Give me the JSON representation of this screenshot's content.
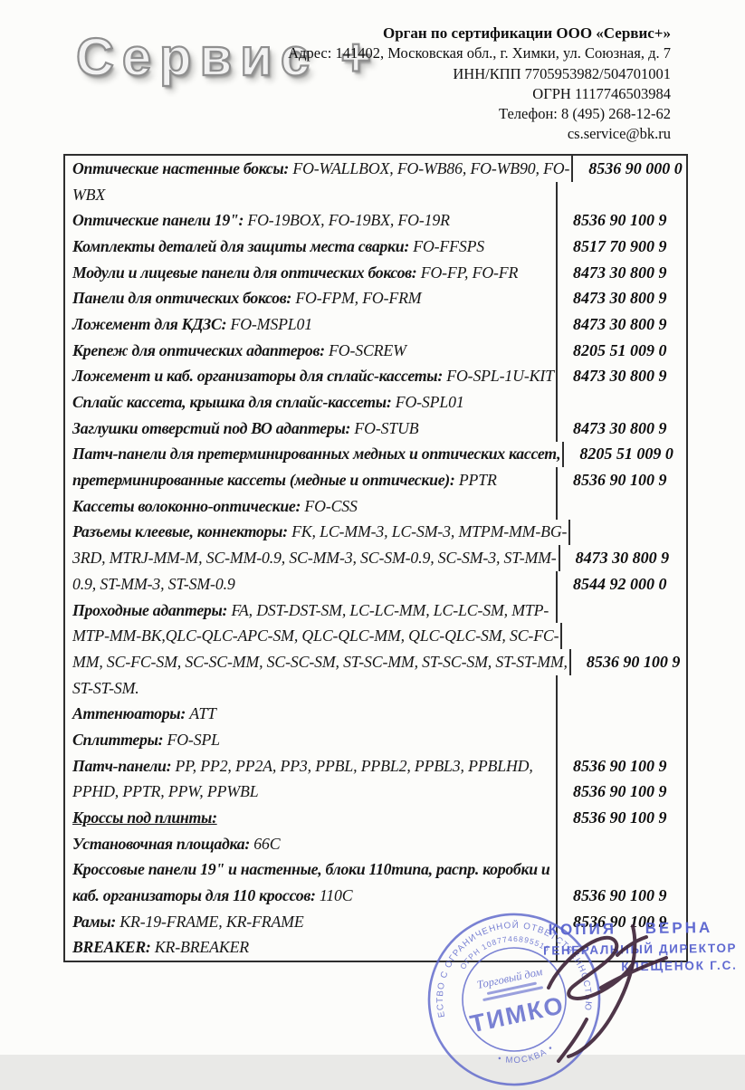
{
  "header": {
    "logo_text": "Сервис +",
    "org_name": "Орган по сертификации ООО «Сервис+»",
    "address": "Адрес: 141402, Московская обл., г. Химки, ул. Союзная, д. 7",
    "inn_kpp": "ИНН/КПП 7705953982/504701001",
    "ogrn": "ОГРН 1117746503984",
    "phone": "Телефон: 8 (495) 268-12-62",
    "email": "cs.service@bk.ru"
  },
  "table": {
    "lines": [
      {
        "b": "Оптические настенные боксы:",
        "r": " FO-WALLBOX, FO-WB86, FO-WB90, FO-",
        "c": "8536 90 000 0"
      },
      {
        "b": "",
        "r": "WBX",
        "c": ""
      },
      {
        "b": "Оптические панели 19\":",
        "r": " FO-19BOX, FO-19BX, FO-19R",
        "c": "8536 90 100 9"
      },
      {
        "b": "Комплекты деталей для защиты места сварки:",
        "r": " FO-FFSPS",
        "c": "8517 70 900 9"
      },
      {
        "b": "Модули и лицевые панели для оптических боксов:",
        "r": " FO-FP, FO-FR",
        "c": "8473 30 800 9"
      },
      {
        "b": "Панели для оптических боксов:",
        "r": " FO-FPM, FO-FRM",
        "c": "8473 30 800 9"
      },
      {
        "b": "Ложемент для КДЗС:",
        "r": " FO-MSPL01",
        "c": "8473 30 800 9"
      },
      {
        "b": "Крепеж для оптических адаптеров:",
        "r": " FO-SCREW",
        "c": "8205 51 009 0"
      },
      {
        "b": "Ложемент и каб. организаторы для сплайс-кассеты:",
        "r": " FO-SPL-1U-KIT",
        "c": "8473 30 800 9"
      },
      {
        "b": "Сплайс кассета, крышка для сплайс-кассеты:",
        "r": " FO-SPL01",
        "c": ""
      },
      {
        "b": "Заглушки отверстий под ВО адаптеры:",
        "r": " FO-STUB",
        "c": "8473 30 800 9"
      },
      {
        "b": "Патч-панели для претерминированных медных и оптических кассет,",
        "r": "",
        "c": "8205 51 009 0"
      },
      {
        "b": "претерминированные кассеты (медные и оптические):",
        "r": " PPTR",
        "c": "8536 90 100 9"
      },
      {
        "b": "Кассеты волоконно-оптические:",
        "r": " FO-CSS",
        "c": ""
      },
      {
        "b": "Разъемы клеевые, коннекторы:",
        "r": " FK, LC-MM-3, LC-SM-3, MTPM-MM-BG-",
        "c": ""
      },
      {
        "b": "",
        "r": "3RD, MTRJ-MM-M, SC-MM-0.9, SC-MM-3, SC-SM-0.9, SC-SM-3, ST-MM-",
        "c": "8473 30 800 9"
      },
      {
        "b": "",
        "r": "0.9, ST-MM-3, ST-SM-0.9",
        "c": "8544 92 000 0"
      },
      {
        "b": "Проходные адаптеры:",
        "r": " FA, DST-DST-SM, LC-LC-MM, LC-LC-SM, MTP-",
        "c": ""
      },
      {
        "b": "",
        "r": "MTP-MM-BK,QLC-QLC-APC-SM, QLC-QLC-MM, QLC-QLC-SM, SC-FC-",
        "c": ""
      },
      {
        "b": "",
        "r": "MM, SC-FC-SM, SC-SC-MM, SC-SC-SM, ST-SC-MM, ST-SC-SM, ST-ST-MM,",
        "c": "8536 90 100 9"
      },
      {
        "b": "",
        "r": "ST-ST-SM.",
        "c": ""
      },
      {
        "b": "Аттенюаторы:",
        "r": " ATT",
        "c": ""
      },
      {
        "b": "Сплиттеры:",
        "r": " FO-SPL",
        "c": ""
      },
      {
        "b": "Патч-панели:",
        "r": " PP, PP2, PP2A, PP3, PPBL, PPBL2, PPBL3, PPBLHD,",
        "c": "8536 90 100 9"
      },
      {
        "b": "",
        "r": "PPHD, PPTR, PPW, PPWBL",
        "c": "8536 90 100 9"
      },
      {
        "b": "Кроссы под плинты:",
        "r": "",
        "c": "8536 90 100 9",
        "u": true
      },
      {
        "b": "Установочная площадка:",
        "r": " 66C",
        "c": ""
      },
      {
        "b": "Кроссовые панели 19\" и настенные, блоки 110типа, распр. коробки и",
        "r": "",
        "c": ""
      },
      {
        "b": "каб. организаторы для 110 кроссов:",
        "r": " 110C",
        "c": "8536 90 100 9"
      },
      {
        "b": "Рамы:",
        "r": " KR-19-FRAME, KR-FRAME",
        "c": "8536 90 100 9"
      },
      {
        "b": "BREAKER:",
        "r": " KR-BREAKER",
        "c": ""
      }
    ]
  },
  "stamps": {
    "copy_stamp": {
      "line1": "КОПИЯ ВЕРНА",
      "line2": "ГЕНЕРАЛЬНЫЙ ДИРЕКТОР",
      "line3": "КЛЕЩЕНОК Г.С.",
      "color": "#5560ce"
    },
    "round_stamp": {
      "ring_text": "ОБЩЕСТВО С ОГРАНИЧЕННОЙ ОТВЕТСТВЕННОСТЬЮ",
      "ogrn_text": "ОГРН 1087746895516",
      "bottom_text": "• МОСКВА •",
      "center_top": "Торговый дом",
      "center_name": "ТИМКО",
      "color": "#5d67cb"
    }
  }
}
